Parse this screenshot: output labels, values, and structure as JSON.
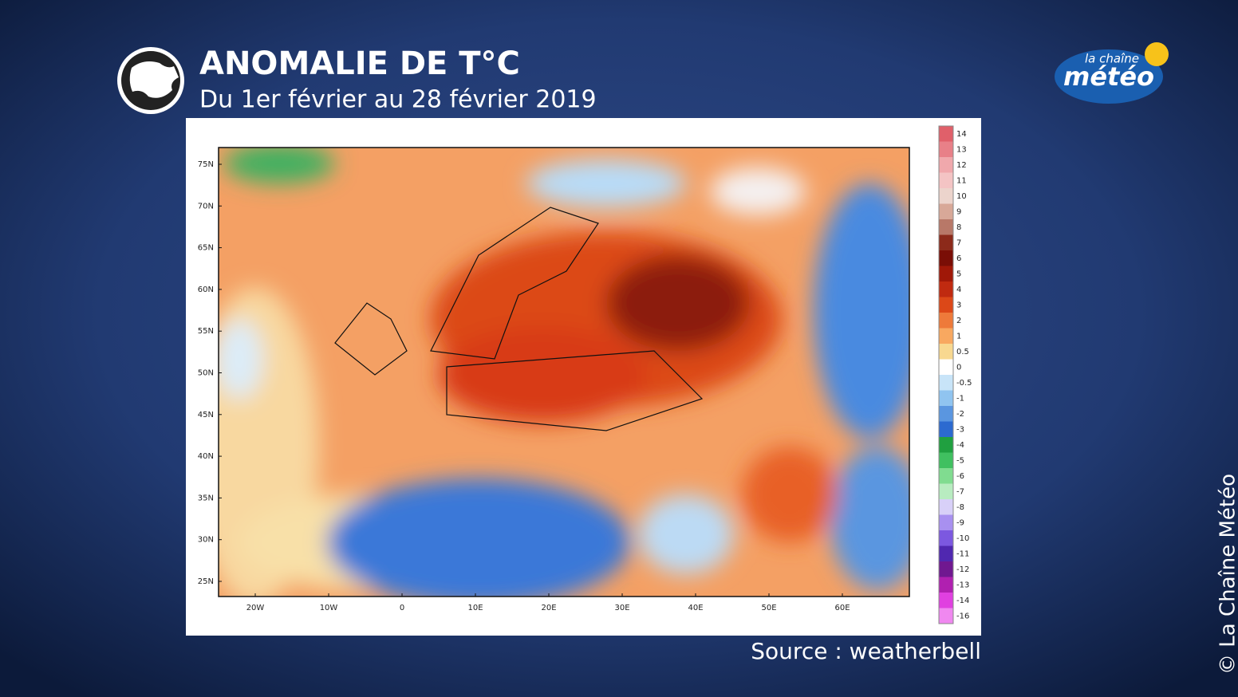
{
  "header": {
    "title": "ANOMALIE DE T°C",
    "subtitle": "Du 1er février au 28 février 2019"
  },
  "logo": {
    "top": "la chaîne",
    "bottom": "météo"
  },
  "map": {
    "lat_labels": [
      "75N",
      "70N",
      "65N",
      "60N",
      "55N",
      "50N",
      "45N",
      "40N",
      "35N",
      "30N",
      "25N"
    ],
    "lon_labels": [
      "20W",
      "10W",
      "0",
      "10E",
      "20E",
      "30E",
      "40E",
      "50E",
      "60E"
    ]
  },
  "colorbar": {
    "labels": [
      "14",
      "13",
      "12",
      "11",
      "10",
      "9",
      "8",
      "7",
      "6",
      "5",
      "4",
      "3",
      "2",
      "1",
      "0.5",
      "0",
      "-0.5",
      "-1",
      "-2",
      "-3",
      "-4",
      "-5",
      "-6",
      "-7",
      "-8",
      "-9",
      "-10",
      "-11",
      "-12",
      "-13",
      "-14",
      "-16"
    ],
    "colors": [
      "#e0606a",
      "#e88088",
      "#f0a8ac",
      "#f4c4c4",
      "#ecd4cc",
      "#d8a898",
      "#b87868",
      "#8c2a1a",
      "#7a0e06",
      "#a01808",
      "#c02a10",
      "#dc4818",
      "#ee7a3a",
      "#f8a860",
      "#f8d890",
      "#ffffff",
      "#c8e4f8",
      "#90c4f0",
      "#5a96e0",
      "#2c6ad0",
      "#20a040",
      "#40c060",
      "#80dc90",
      "#b8ecc0",
      "#d8d0f8",
      "#a890f0",
      "#7c58e0",
      "#5028b0",
      "#701890",
      "#b020b0",
      "#e040e0",
      "#f088f0"
    ]
  },
  "source": "Source : weatherbell",
  "copyright": "© La Chaîne Météo"
}
